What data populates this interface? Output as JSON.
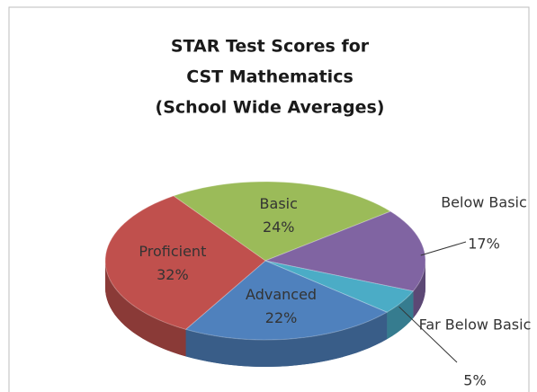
{
  "chart_data": {
    "type": "pie3d",
    "title": [
      "STAR Test Scores for",
      "CST Mathematics",
      "(School Wide Averages)"
    ],
    "categories": [
      "Basic",
      "Below Basic",
      "Far Below Basic",
      "Advanced",
      "Proficient"
    ],
    "values": [
      24,
      17,
      5,
      22,
      32
    ],
    "value_labels": [
      "24%",
      "17%",
      "5%",
      "22%",
      "32%"
    ],
    "colors": [
      "#9bbb59",
      "#8064a2",
      "#4bacc6",
      "#4f81bd",
      "#c0504d"
    ]
  }
}
